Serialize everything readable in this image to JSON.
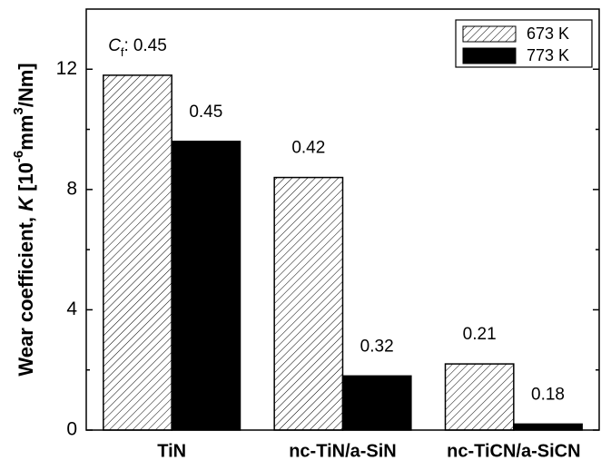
{
  "chart_data": {
    "type": "bar",
    "categories": [
      "TiN",
      "nc-TiN/a-SiN",
      "nc-TiCN/a-SiCN"
    ],
    "series": [
      {
        "name": "673 K",
        "color": "#ffffff",
        "hatch": true,
        "values": [
          11.8,
          8.4,
          2.2
        ],
        "friction": [
          0.45,
          0.42,
          0.21
        ]
      },
      {
        "name": "773 K",
        "color": "#000000",
        "hatch": false,
        "values": [
          9.6,
          1.8,
          0.2
        ],
        "friction": [
          0.45,
          0.32,
          0.18
        ]
      }
    ],
    "friction_label": {
      "symbol": "C",
      "subscript": "f",
      "separator": ":"
    },
    "ylabel_parts": [
      "Wear coefficient, ",
      "K",
      " [10",
      "-6",
      "mm",
      "3",
      "/Nm]"
    ],
    "ylim": [
      0,
      14
    ],
    "yticks": [
      0,
      4,
      8,
      12
    ],
    "yminor_ticks": [
      2,
      6,
      10
    ],
    "legend": "upper right"
  }
}
